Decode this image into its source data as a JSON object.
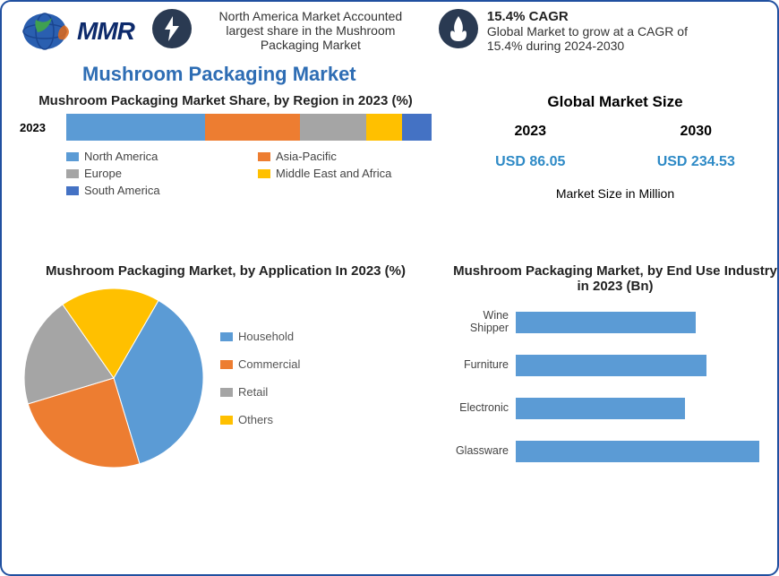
{
  "logo_text": "MMR",
  "stat1_text": "North America Market Accounted largest share in the Mushroom Packaging Market",
  "stat2_title": "15.4% CAGR",
  "stat2_text": "Global Market to grow at a CAGR of 15.4% during 2024-2030",
  "main_title": "Mushroom Packaging Market",
  "region_chart": {
    "title": "Mushroom Packaging Market Share, by Region in 2023 (%)",
    "row_label": "2023",
    "segments": [
      {
        "name": "North America",
        "value": 38,
        "color": "#5b9bd5"
      },
      {
        "name": "Asia-Pacific",
        "value": 26,
        "color": "#ed7d31"
      },
      {
        "name": "Europe",
        "value": 18,
        "color": "#a5a5a5"
      },
      {
        "name": "Middle East and Africa",
        "value": 10,
        "color": "#ffc000"
      },
      {
        "name": "South America",
        "value": 8,
        "color": "#4472c4"
      }
    ]
  },
  "market_size": {
    "title": "Global Market Size",
    "years": [
      {
        "year": "2023",
        "value": "USD 86.05"
      },
      {
        "year": "2030",
        "value": "USD 234.53"
      }
    ],
    "note": "Market Size in Million",
    "value_color": "#2e8ac6"
  },
  "pie_chart": {
    "title": "Mushroom Packaging Market, by Application In 2023 (%)",
    "slices": [
      {
        "name": "Household",
        "value": 37,
        "color": "#5b9bd5"
      },
      {
        "name": "Commercial",
        "value": 25,
        "color": "#ed7d31"
      },
      {
        "name": "Retail",
        "value": 20,
        "color": "#a5a5a5"
      },
      {
        "name": "Others",
        "value": 18,
        "color": "#ffc000"
      }
    ]
  },
  "bar_chart": {
    "title": "Mushroom Packaging Market, by End Use Industry in 2023 (Bn)",
    "bar_color": "#5b9bd5",
    "xmax": 100,
    "bars": [
      {
        "name": "Wine Shipper",
        "value": 68
      },
      {
        "name": "Furniture",
        "value": 72
      },
      {
        "name": "Electronic",
        "value": 64
      },
      {
        "name": "Glassware",
        "value": 92
      }
    ]
  },
  "colors": {
    "border": "#2050a0",
    "title_blue": "#2e6db4",
    "icon_bg": "#2a3a52"
  }
}
